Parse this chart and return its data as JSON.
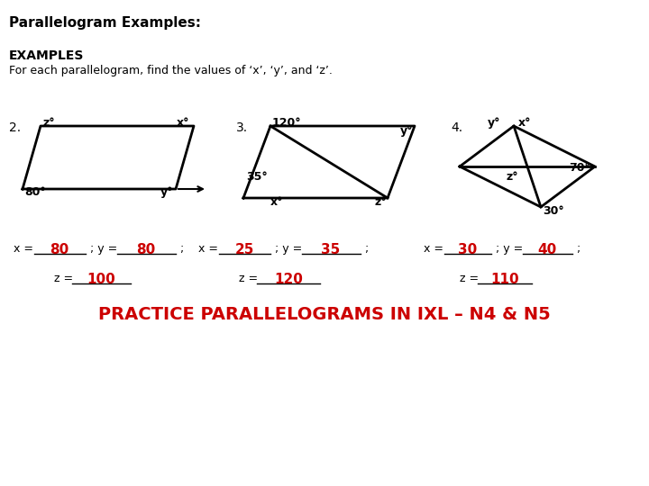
{
  "title": "Parallelogram Examples:",
  "background_color": "#ffffff",
  "examples_label": "EXAMPLES",
  "subtitle": "For each parallelogram, find the values of ‘x’, ‘y’, and ‘z’.",
  "practice_text": "PRACTICE PARALLELOGRAMS IN IXL – N4 & N5",
  "practice_color": "#cc0000",
  "answer_color": "#cc0000",
  "problems": [
    {
      "number": "2.",
      "x_ans": "80",
      "y_ans": "80",
      "z_ans": "100",
      "angles": {
        "bottom_left": "80°",
        "top_left": "z°",
        "top_right": "x°",
        "bottom_right": "y°"
      },
      "has_arrow": true
    },
    {
      "number": "3.",
      "x_ans": "25",
      "y_ans": "35",
      "z_ans": "120",
      "angles": {
        "top_left": "120°",
        "top_right": "y°",
        "bottom_left": "35°",
        "bottom_mid": "x°",
        "bottom_right": "z°"
      },
      "has_diagonal": true
    },
    {
      "number": "4.",
      "x_ans": "30",
      "y_ans": "40",
      "z_ans": "110",
      "angles": {
        "top_left": "y°",
        "top_right": "x°",
        "bottom_left": "30°",
        "right_mid": "70°",
        "center": "z°"
      },
      "has_diagonals": true
    }
  ]
}
